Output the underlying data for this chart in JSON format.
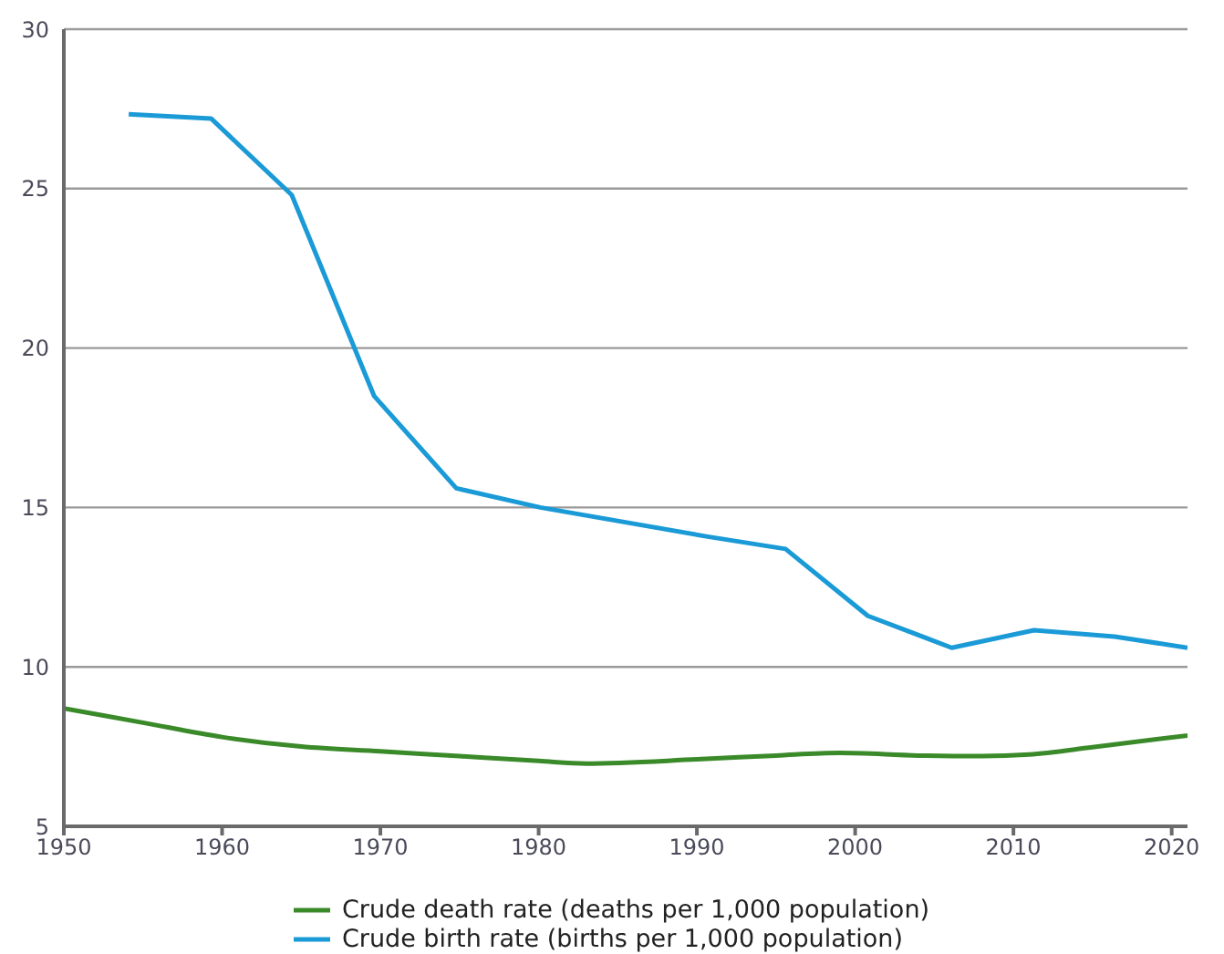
{
  "chart_data": {
    "type": "line",
    "xlim": [
      1950,
      2021
    ],
    "xticks": [
      1950,
      1960,
      1970,
      1980,
      1990,
      2000,
      2010,
      2020
    ],
    "ylim": [
      5,
      30
    ],
    "yticks": [
      5,
      10,
      15,
      20,
      25,
      30
    ],
    "grid": "y",
    "legend": "bottom",
    "marker": "none",
    "series": [
      {
        "name": "Crude death rate (deaths per 1,000 population)",
        "color": "#3a8a2a",
        "line_style": "solid",
        "x": [
          1950,
          1955,
          1960,
          1965,
          1970,
          1975,
          1980,
          1983,
          1990,
          1995,
          1999,
          2004,
          2008,
          2011,
          2015,
          2021
        ],
        "values": [
          8.7,
          8.25,
          7.8,
          7.5,
          7.35,
          7.2,
          7.05,
          6.97,
          7.1,
          7.22,
          7.3,
          7.22,
          7.2,
          7.25,
          7.48,
          7.85
        ]
      },
      {
        "name": "Crude birth rate (births per 1,000 population)",
        "color": "#1a9ad6",
        "line_style": "solid",
        "x": [
          1954.1,
          1959.3,
          1964.4,
          1969.6,
          1974.8,
          1980.1,
          1990.5,
          1995.6,
          2000.8,
          2006.1,
          2011.3,
          2016.4,
          2021
        ],
        "values": [
          27.33,
          27.2,
          24.8,
          18.5,
          15.6,
          15.0,
          14.1,
          13.7,
          11.6,
          10.6,
          11.15,
          10.95,
          10.6
        ]
      }
    ]
  }
}
